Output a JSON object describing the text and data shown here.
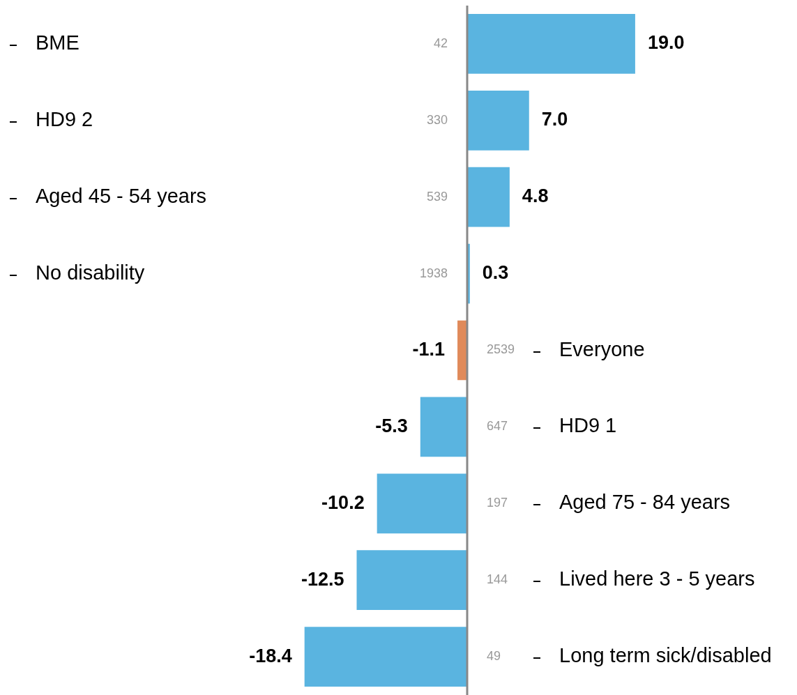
{
  "chart_data": {
    "type": "bar",
    "orientation": "horizontal",
    "categories": [
      "BME",
      "HD9 2",
      "Aged 45 - 54 years",
      "No disability",
      "Everyone",
      "HD9 1",
      "Aged 75 - 84 years",
      "Lived here 3 - 5 years",
      "Long term sick/disabled"
    ],
    "values": [
      19.0,
      7.0,
      4.8,
      0.3,
      -1.1,
      -5.3,
      -10.2,
      -12.5,
      -18.4
    ],
    "colors": [
      "#5ab4e0",
      "#5ab4e0",
      "#5ab4e0",
      "#5ab4e0",
      "#e08a5a",
      "#5ab4e0",
      "#5ab4e0",
      "#5ab4e0",
      "#5ab4e0"
    ],
    "value_labels": [
      "19.0",
      "7.0",
      "4.8",
      "0.3",
      "-1.1",
      "-5.3",
      "-10.2",
      "-12.5",
      "-18.4"
    ],
    "annotations": [
      "42",
      "330",
      "539",
      "1938",
      "2539",
      "647",
      "197",
      "144",
      "49"
    ]
  }
}
